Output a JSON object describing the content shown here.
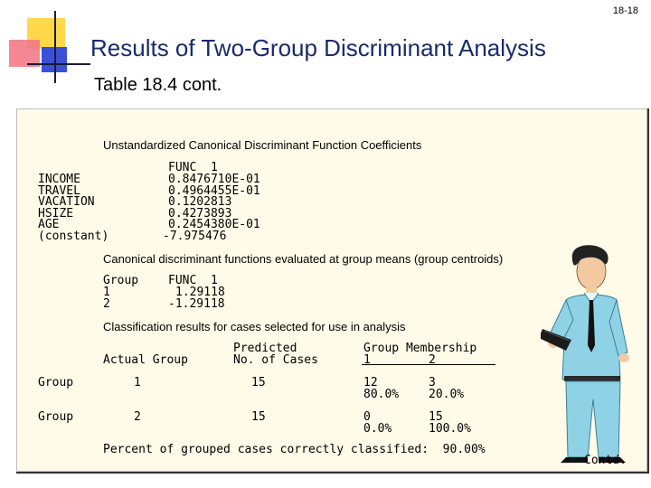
{
  "page_number": "18-18",
  "title": "Results of Two-Group Discriminant Analysis",
  "subtitle": "Table 18.4 cont.",
  "coefficients": {
    "heading": "Unstandardized Canonical Discriminant Function Coefficients",
    "func_header": "FUNC  1",
    "rows": [
      {
        "label": "INCOME",
        "value": "0.8476710E-01"
      },
      {
        "label": "TRAVEL",
        "value": "0.4964455E-01"
      },
      {
        "label": "VACATION",
        "value": "0.1202813"
      },
      {
        "label": "HSIZE",
        "value": "0.4273893"
      },
      {
        "label": "AGE",
        "value": "0.2454380E-01"
      },
      {
        "label": "(constant)",
        "value": "-7.975476"
      }
    ]
  },
  "centroids": {
    "heading": "Canonical discriminant functions evaluated at group means (group centroids)",
    "group_header": "Group",
    "func_header": "FUNC  1",
    "rows": [
      {
        "group": "1",
        "value": "1.29118"
      },
      {
        "group": "2",
        "value": "-1.29118"
      }
    ]
  },
  "classification": {
    "heading": "Classification results for cases selected for use in analysis",
    "col_actual": "Actual Group",
    "col_predicted_line1": "Predicted",
    "col_predicted_line2": "No. of Cases",
    "col_membership_line1": "Group Membership",
    "col_membership_g1": "1",
    "col_membership_g2": "2",
    "rows": [
      {
        "label": "Group",
        "group": "1",
        "cases": "15",
        "g1_count": "12",
        "g1_pct": "80.0%",
        "g2_count": "3",
        "g2_pct": "20.0%"
      },
      {
        "label": "Group",
        "group": "2",
        "cases": "15",
        "g1_count": "0",
        "g1_pct": "0.0%",
        "g2_count": "15",
        "g2_pct": "100.0%"
      }
    ],
    "summary": "Percent of grouped cases correctly classified:  90.00%"
  },
  "contd": "Contd."
}
